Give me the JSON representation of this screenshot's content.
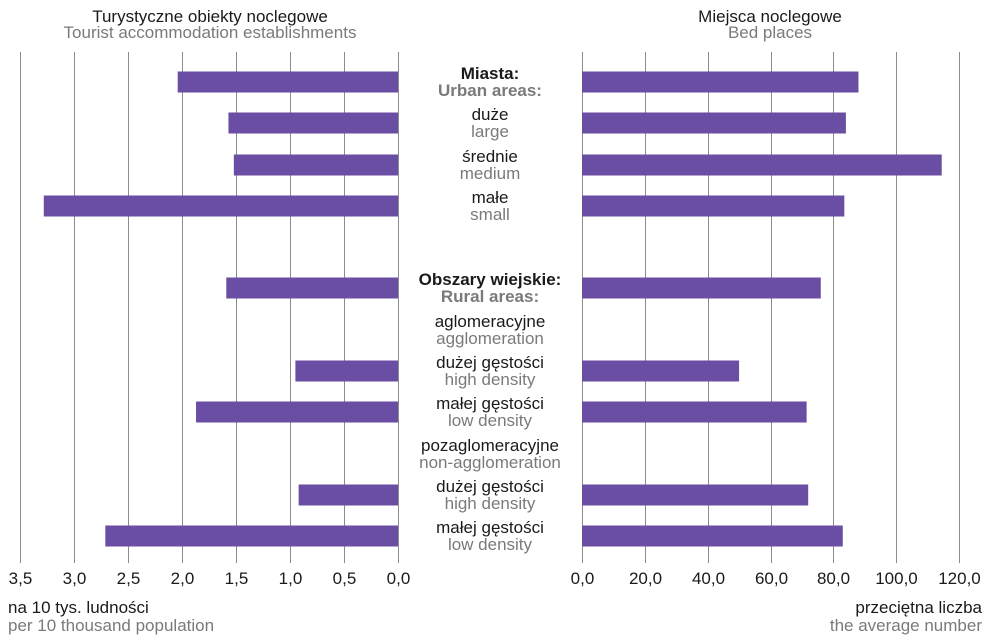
{
  "chart_data": {
    "type": "bar",
    "orientation": "horizontal",
    "colors": {
      "bar": "#6a4ea3",
      "grid": "#8c8c8c",
      "primary_text": "#1a1a1a",
      "secondary_text": "#7a7a7a"
    },
    "categories": [
      {
        "pl": "Miasta:",
        "en": "Urban areas:",
        "bold": true,
        "has_bar": true
      },
      {
        "pl": "duże",
        "en": "large",
        "bold": false,
        "has_bar": true
      },
      {
        "pl": "średnie",
        "en": "medium",
        "bold": false,
        "has_bar": true
      },
      {
        "pl": "małe",
        "en": "small",
        "bold": false,
        "has_bar": true
      },
      {
        "pl": "Obszary wiejskie:",
        "en": "Rural areas:",
        "bold": true,
        "has_bar": true
      },
      {
        "pl": "aglomeracyjne",
        "en": "agglomeration",
        "bold": false,
        "has_bar": false
      },
      {
        "pl": "dużej gęstości",
        "en": "high density",
        "bold": false,
        "has_bar": true
      },
      {
        "pl": "małej gęstości",
        "en": "low density",
        "bold": false,
        "has_bar": true
      },
      {
        "pl": "pozaglomeracyjne",
        "en": "non-agglomeration",
        "bold": false,
        "has_bar": false
      },
      {
        "pl": "dużej gęstości",
        "en": "high density",
        "bold": false,
        "has_bar": true
      },
      {
        "pl": "małej gęstości",
        "en": "low density",
        "bold": false,
        "has_bar": true
      }
    ],
    "panels": [
      {
        "title_pl": "Turystyczne obiekty noclegowe",
        "title_en": "Tourist accommodation establishments",
        "unit_pl": "na 10 tys. ludności",
        "unit_en": "per 10 thousand population",
        "reversed": true,
        "xlim": [
          0,
          3.5
        ],
        "ticks": [
          0,
          0.5,
          1.0,
          1.5,
          2.0,
          2.5,
          3.0,
          3.5
        ],
        "tick_labels": [
          "0,0",
          "0,5",
          "1,0",
          "1,5",
          "2,0",
          "2,5",
          "3,0",
          "3,5"
        ],
        "values": [
          2.04,
          1.57,
          1.52,
          3.28,
          null,
          null,
          0.95,
          1.87,
          null,
          0.92,
          2.71
        ],
        "values_note": "",
        "rural_total": 1.59
      },
      {
        "title_pl": "Miejsca noclegowe",
        "title_en": "Bed places",
        "unit_pl": "przeciętna liczba",
        "unit_en": "the average number",
        "reversed": false,
        "xlim": [
          0,
          120
        ],
        "ticks": [
          0,
          20,
          40,
          60,
          80,
          100,
          120
        ],
        "tick_labels": [
          "0,0",
          "20,0",
          "40,0",
          "60,0",
          "80,0",
          "100,0",
          "120,0"
        ],
        "values": [
          88,
          84,
          114.5,
          83.5,
          null,
          null,
          50,
          71.5,
          null,
          72,
          83
        ],
        "rural_total": 76
      }
    ]
  }
}
